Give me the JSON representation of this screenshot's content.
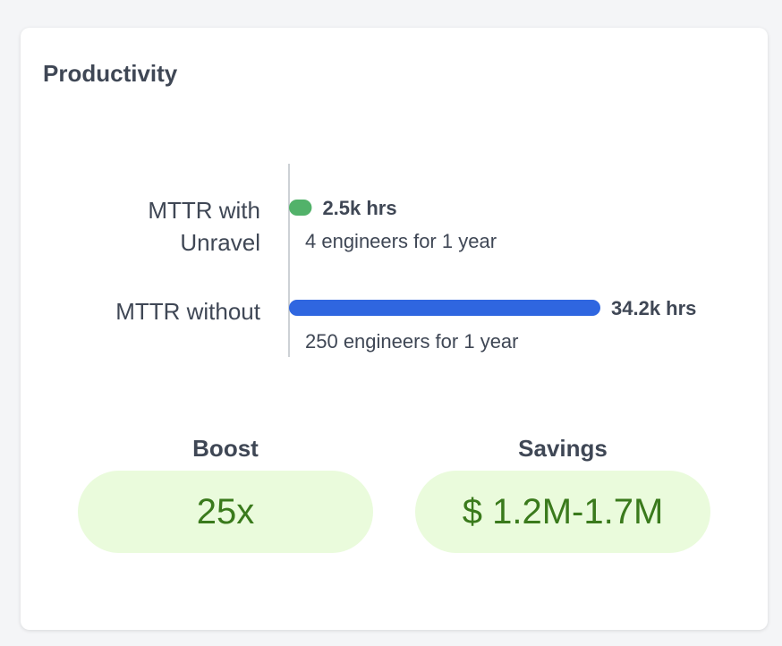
{
  "card": {
    "title": "Productivity"
  },
  "chart_data": {
    "type": "bar",
    "orientation": "horizontal",
    "categories": [
      {
        "lines": [
          "MTTR with",
          "Unravel"
        ],
        "value": 2.5,
        "value_label": "2.5k hrs",
        "note": "4 engineers for 1 year",
        "color": "#52b26a"
      },
      {
        "lines": [
          "MTTR without"
        ],
        "value": 34.2,
        "value_label": "34.2k hrs",
        "note": "250 engineers for 1 year",
        "color": "#2f66e0"
      }
    ],
    "unit": "k hrs",
    "xlim": [
      0,
      34.2
    ],
    "axis_color": "#cdd1d6",
    "grid": false,
    "legend": false
  },
  "stats": {
    "boost": {
      "title": "Boost",
      "value": "25x"
    },
    "savings": {
      "title": "Savings",
      "value": "$ 1.2M-1.7M"
    }
  },
  "colors": {
    "pill_bg": "#eafbdc",
    "pill_text": "#3a7a1c",
    "text": "#3f4755"
  }
}
